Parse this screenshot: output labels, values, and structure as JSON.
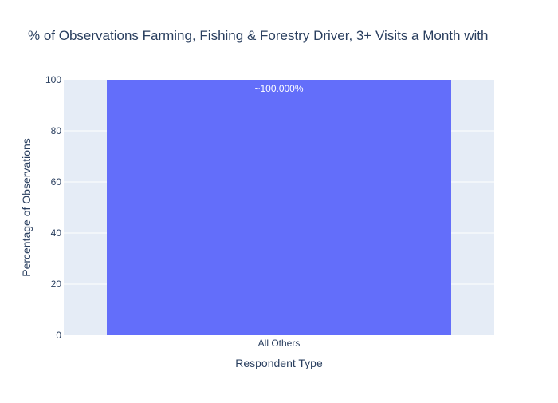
{
  "chart_data": {
    "type": "bar",
    "title": "% of Observations Farming, Fishing & Forestry Driver, 3+ Visits a Month with",
    "xlabel": "Respondent Type",
    "ylabel": "Percentage of Observations",
    "categories": [
      "All Others"
    ],
    "values": [
      100
    ],
    "data_labels": [
      "~100.000%"
    ],
    "ylim": [
      0,
      100
    ],
    "yticks": [
      "0",
      "20",
      "40",
      "60",
      "80",
      "100"
    ],
    "grid": true,
    "legend": "none"
  },
  "colors": {
    "bar": "#636efa",
    "plot_background": "#e5ecf6",
    "gridline": "#ffffff",
    "text": "#2a3f5f",
    "data_label": "#ffffff"
  }
}
